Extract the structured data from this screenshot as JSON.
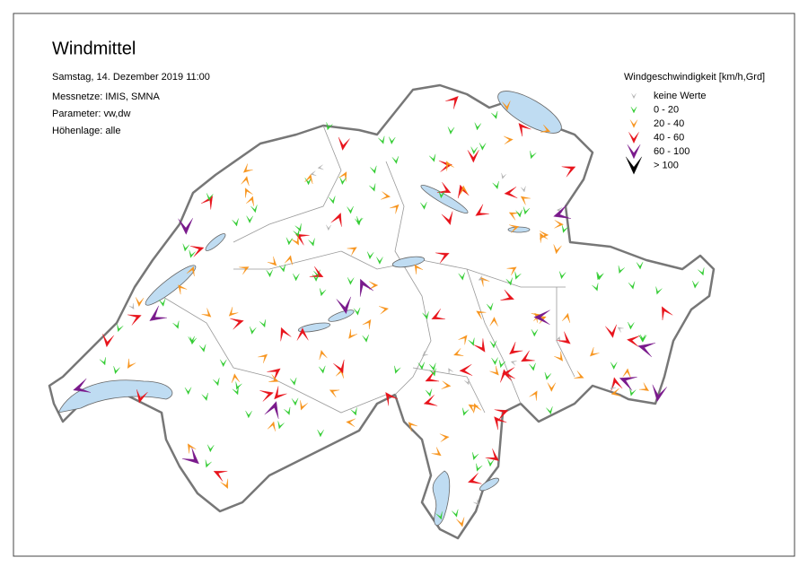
{
  "header": {
    "title": "Windmittel",
    "date": "Samstag, 14. Dezember 2019 11:00",
    "lines": [
      "Messnetze: IMIS, SMNA",
      "Parameter: vw,dw",
      "Höhenlage: alle"
    ]
  },
  "legend": {
    "title": "Windgeschwindigkeit [km/h,Grd]",
    "items": [
      {
        "label": "keine Werte",
        "color": "#b0b0b0"
      },
      {
        "label": "0 - 20",
        "color": "#33cc33"
      },
      {
        "label": "20 - 40",
        "color": "#f7941d"
      },
      {
        "label": "40 - 60",
        "color": "#e8141c"
      },
      {
        "label": "60 - 100",
        "color": "#7a1a8c"
      },
      {
        "label": "> 100",
        "color": "#000000"
      }
    ]
  }
}
